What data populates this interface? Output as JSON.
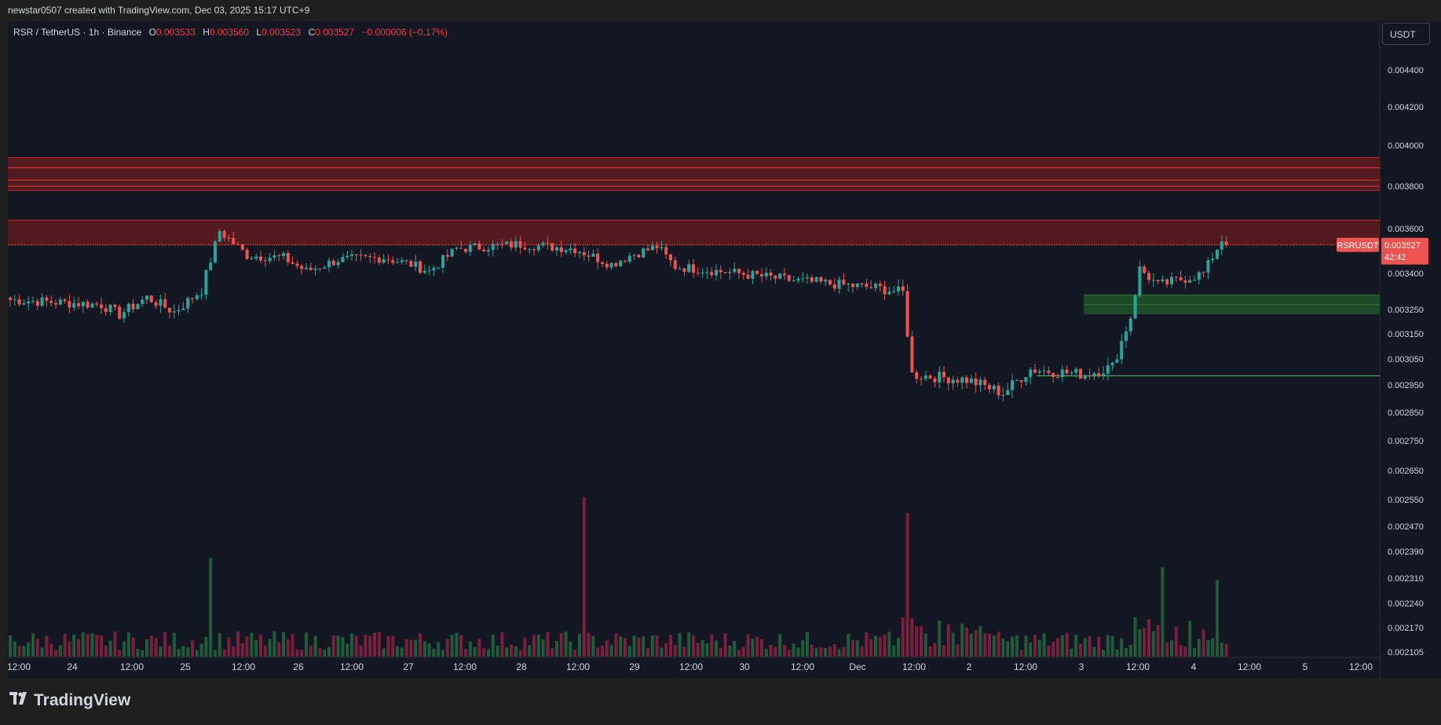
{
  "header": {
    "attribution": "newstar0507 created with TradingView.com, Dec 03, 2025 15:17 UTC+9"
  },
  "legend": {
    "symbol": "RSR / TetherUS · 1h · Binance",
    "open_label": "O",
    "open": "0.003533",
    "high_label": "H",
    "high": "0.003560",
    "low_label": "L",
    "low": "0.003523",
    "close_label": "C",
    "close": "0.003527",
    "change": "−0.000006 (−0.17%)"
  },
  "currency_button": "USDT",
  "last_price": {
    "symbol": "RSRUSDT",
    "price": "0.003527",
    "countdown": "42:42"
  },
  "brand": "TradingView",
  "colors": {
    "up": "#26a69a",
    "down": "#ef5350",
    "vol_up": "#1f5c3a",
    "vol_down": "#7a1f3d",
    "background": "#131722",
    "resistance_zone": "#5a1a1f",
    "support_zone": "#1f4a2a",
    "support_line": "#4caf50"
  },
  "chart_data": {
    "type": "candlestick",
    "timeframe": "1h",
    "y_ticks": [
      "0.004400",
      "0.004200",
      "0.004000",
      "0.003800",
      "0.003600",
      "0.003400",
      "0.003250",
      "0.003150",
      "0.003050",
      "0.002950",
      "0.002850",
      "0.002750",
      "0.002650",
      "0.002550",
      "0.002470",
      "0.002390",
      "0.002310",
      "0.002240",
      "0.002170",
      "0.002105"
    ],
    "x_ticks": [
      "12:00",
      "24",
      "12:00",
      "25",
      "12:00",
      "26",
      "12:00",
      "27",
      "12:00",
      "28",
      "12:00",
      "29",
      "12:00",
      "30",
      "12:00",
      "Dec",
      "12:00",
      "2",
      "12:00",
      "3",
      "12:00",
      "4",
      "12:00",
      "5",
      "12:00"
    ],
    "anchors": [
      [
        0,
        0.00329
      ],
      [
        20,
        0.00327
      ],
      [
        24,
        0.00323
      ],
      [
        30,
        0.0033
      ],
      [
        36,
        0.00324
      ],
      [
        42,
        0.00333
      ],
      [
        46,
        0.00359
      ],
      [
        52,
        0.00348
      ],
      [
        60,
        0.00347
      ],
      [
        65,
        0.00341
      ],
      [
        72,
        0.00346
      ],
      [
        82,
        0.00347
      ],
      [
        88,
        0.00344
      ],
      [
        92,
        0.00341
      ],
      [
        98,
        0.00351
      ],
      [
        112,
        0.00353
      ],
      [
        124,
        0.00351
      ],
      [
        132,
        0.00344
      ],
      [
        136,
        0.00348
      ],
      [
        142,
        0.00352
      ],
      [
        146,
        0.00343
      ],
      [
        160,
        0.0034
      ],
      [
        172,
        0.00337
      ],
      [
        190,
        0.00334
      ],
      [
        196,
        0.00332
      ],
      [
        198,
        0.00299
      ],
      [
        210,
        0.00297
      ],
      [
        218,
        0.00292
      ],
      [
        224,
        0.00301
      ],
      [
        236,
        0.00299
      ],
      [
        242,
        0.00302
      ],
      [
        246,
        0.00322
      ],
      [
        248,
        0.00342
      ],
      [
        252,
        0.00335
      ],
      [
        262,
        0.0034
      ],
      [
        266,
        0.00355
      ],
      [
        267,
        0.003527
      ]
    ],
    "zones": [
      {
        "type": "resistance",
        "from": 0.00378,
        "to": 0.00394
      },
      {
        "type": "resistance",
        "from": 0.003527,
        "to": 0.00364
      },
      {
        "type": "support",
        "from": 0.00323,
        "to": 0.00331
      },
      {
        "type": "support_line",
        "value": 0.002985
      }
    ],
    "volume_spikes": [
      {
        "index": 44,
        "relative": 0.62
      },
      {
        "index": 126,
        "relative": 1.0
      },
      {
        "index": 197,
        "relative": 0.9
      },
      {
        "index": 253,
        "relative": 0.56
      },
      {
        "index": 265,
        "relative": 0.48
      }
    ]
  }
}
